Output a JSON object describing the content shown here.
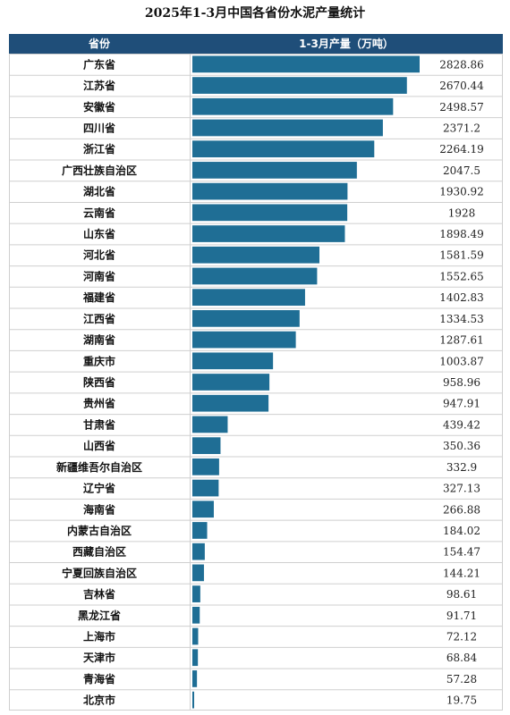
{
  "title": "2025年1-3月中国各省份水泥产量统计",
  "header": {
    "col_province": "省份",
    "col_production": "1-3月产量（万吨）"
  },
  "colors": {
    "bar": "#1f6e95",
    "header_bg": "#1f4e79",
    "grid": "#cfcfcf"
  },
  "chart_data": {
    "type": "bar",
    "orientation": "horizontal",
    "title": "2025年1-3月中国各省份水泥产量统计",
    "categories": [
      "广东省",
      "江苏省",
      "安徽省",
      "四川省",
      "浙江省",
      "广西壮族自治区",
      "湖北省",
      "云南省",
      "山东省",
      "河北省",
      "河南省",
      "福建省",
      "江西省",
      "湖南省",
      "重庆市",
      "陕西省",
      "贵州省",
      "甘肃省",
      "山西省",
      "新疆维吾尔自治区",
      "辽宁省",
      "海南省",
      "内蒙古自治区",
      "西藏自治区",
      "宁夏回族自治区",
      "吉林省",
      "黑龙江省",
      "上海市",
      "天津市",
      "青海省",
      "北京市"
    ],
    "values": [
      2828.86,
      2670.44,
      2498.57,
      2371.2,
      2264.19,
      2047.5,
      1930.92,
      1928,
      1898.49,
      1581.59,
      1552.65,
      1402.83,
      1334.53,
      1287.61,
      1003.87,
      958.96,
      947.91,
      439.42,
      350.36,
      332.9,
      327.13,
      266.88,
      184.02,
      154.47,
      144.21,
      98.61,
      91.71,
      72.12,
      68.84,
      57.28,
      19.75
    ],
    "value_labels": [
      "2828.86",
      "2670.44",
      "2498.57",
      "2371.2",
      "2264.19",
      "2047.5",
      "1930.92",
      "1928",
      "1898.49",
      "1581.59",
      "1552.65",
      "1402.83",
      "1334.53",
      "1287.61",
      "1003.87",
      "958.96",
      "947.91",
      "439.42",
      "350.36",
      "332.9",
      "327.13",
      "266.88",
      "184.02",
      "154.47",
      "144.21",
      "98.61",
      "91.71",
      "72.12",
      "68.84",
      "57.28",
      "19.75"
    ]
  }
}
